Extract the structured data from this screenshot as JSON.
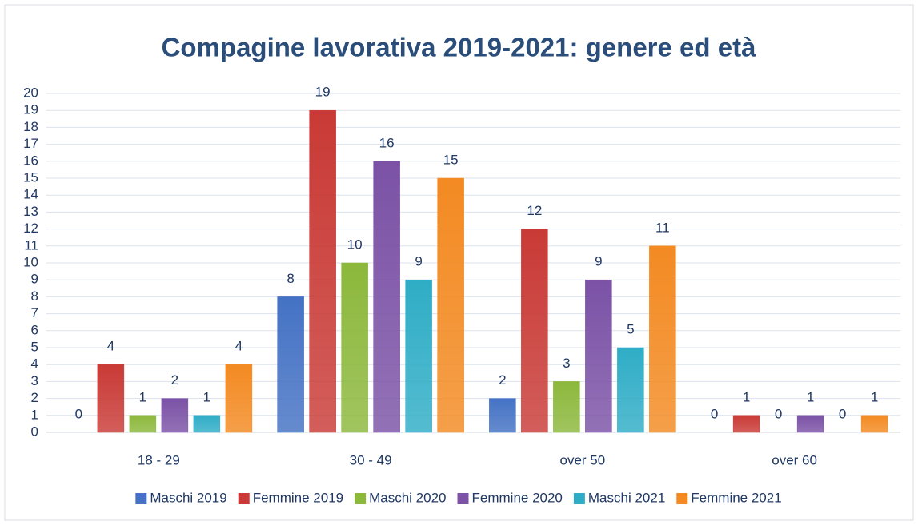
{
  "chart_data": {
    "type": "bar",
    "title": "Compagine lavorativa 2019-2021: genere ed età",
    "categories": [
      "18 - 29",
      "30 - 49",
      "over 50",
      "over 60"
    ],
    "series": [
      {
        "name": "Maschi 2019",
        "color": "#4472c4",
        "values": [
          0,
          8,
          2,
          0
        ]
      },
      {
        "name": "Femmine 2019",
        "color": "#c93a36",
        "values": [
          4,
          19,
          12,
          1
        ]
      },
      {
        "name": "Maschi 2020",
        "color": "#8cb83c",
        "values": [
          1,
          10,
          3,
          0
        ]
      },
      {
        "name": "Femmine 2020",
        "color": "#7b52a6",
        "values": [
          2,
          16,
          9,
          1
        ]
      },
      {
        "name": "Maschi 2021",
        "color": "#2fadc6",
        "values": [
          1,
          9,
          5,
          0
        ]
      },
      {
        "name": "Femmine 2021",
        "color": "#f38a22",
        "values": [
          4,
          15,
          11,
          1
        ]
      }
    ],
    "ylim": [
      0,
      20
    ],
    "yticks": [
      0,
      1,
      2,
      3,
      4,
      5,
      6,
      7,
      8,
      9,
      10,
      11,
      12,
      13,
      14,
      15,
      16,
      17,
      18,
      19,
      20
    ],
    "grid": true,
    "legend": "bottom"
  }
}
